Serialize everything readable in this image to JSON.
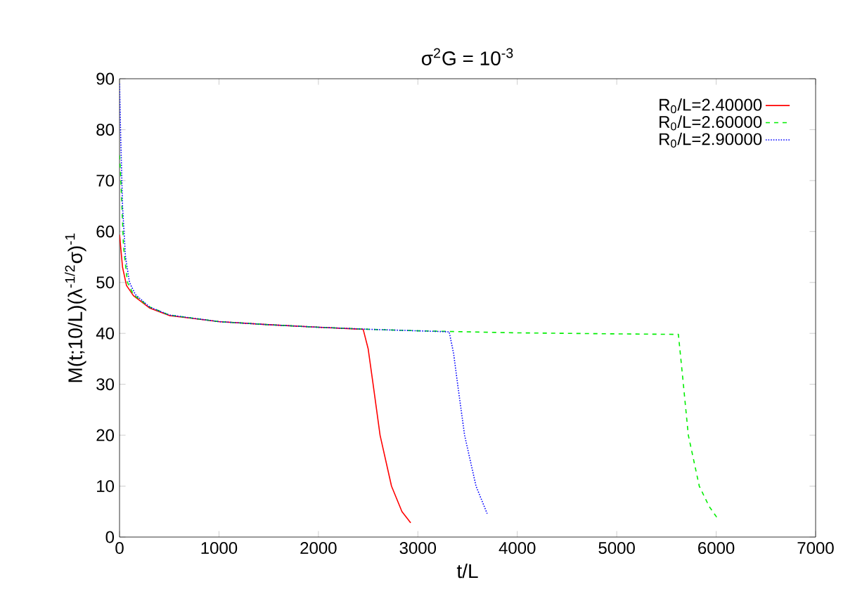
{
  "chart_data": {
    "type": "line",
    "title": "σ$^{2}$G = 10$^{-3}$",
    "xlabel": "t/L",
    "ylabel": "M(t;10/L)(λ$^{-1/2}$σ)$^{-1}$",
    "xlim": [
      0,
      7000
    ],
    "ylim": [
      0,
      90
    ],
    "xticks": [
      0,
      1000,
      2000,
      3000,
      4000,
      5000,
      6000,
      7000
    ],
    "yticks": [
      0,
      10,
      20,
      30,
      40,
      50,
      60,
      70,
      80,
      90
    ],
    "legend": "top right",
    "grid": false,
    "series": [
      {
        "name": "R$_{0}$/L=2.40000",
        "color": "#ff0000",
        "line_style": "solid",
        "x": [
          0,
          30,
          70,
          140,
          300,
          500,
          1000,
          1500,
          2000,
          2450,
          2500,
          2550,
          2620,
          2735,
          2840,
          2928
        ],
        "values": [
          59.4,
          53,
          49.4,
          47.4,
          45,
          43.5,
          42.3,
          41.7,
          41.2,
          40.8,
          37,
          30,
          20,
          10,
          5,
          2.8
        ]
      },
      {
        "name": "R$_{0}$/L=2.60000",
        "color": "#00ee00",
        "line_style": "dashed",
        "x": [
          0,
          15,
          40,
          80,
          140,
          300,
          500,
          1000,
          1500,
          2000,
          2500,
          3000,
          4000,
          5000,
          5620,
          5660,
          5720,
          5830,
          5930,
          6020
        ],
        "values": [
          75,
          69.5,
          57,
          50,
          47.6,
          45.2,
          43.6,
          42.3,
          41.7,
          41.2,
          40.8,
          40.5,
          40.1,
          39.9,
          39.8,
          32,
          20,
          10,
          6,
          3.5
        ]
      },
      {
        "name": "R$_{0}$/L=2.90000",
        "color": "#0000ff",
        "line_style": "dotted",
        "x": [
          0,
          10,
          30,
          60,
          100,
          160,
          300,
          500,
          1000,
          1500,
          2000,
          2500,
          3000,
          3315,
          3360,
          3400,
          3470,
          3585,
          3697
        ],
        "values": [
          89,
          80,
          65,
          55,
          50,
          47.6,
          45.2,
          43.6,
          42.3,
          41.7,
          41.2,
          40.8,
          40.5,
          40.3,
          36,
          30,
          20,
          10,
          4.6
        ]
      }
    ]
  }
}
